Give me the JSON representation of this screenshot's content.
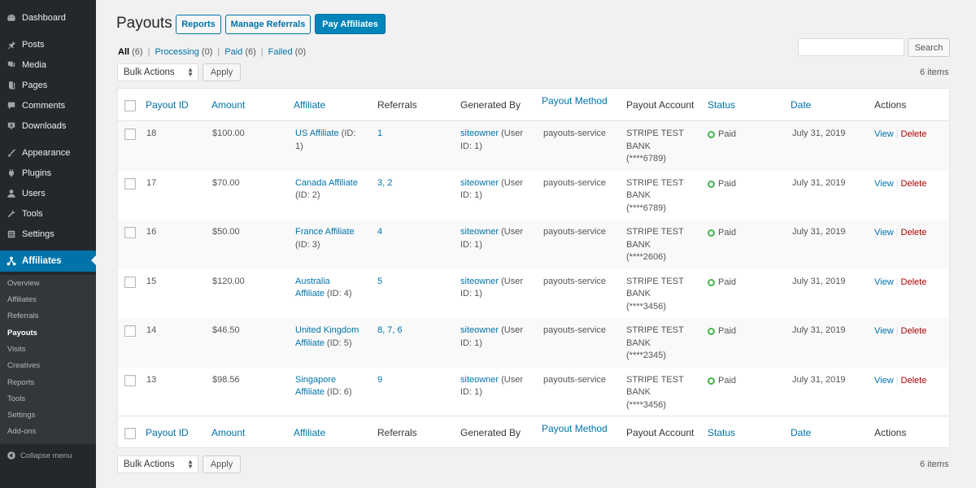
{
  "sidebar": {
    "items": [
      {
        "label": "Dashboard",
        "icon": "dashboard-icon"
      },
      {
        "label": "Posts",
        "icon": "pin-icon"
      },
      {
        "label": "Media",
        "icon": "media-icon"
      },
      {
        "label": "Pages",
        "icon": "pages-icon"
      },
      {
        "label": "Comments",
        "icon": "comment-icon"
      },
      {
        "label": "Downloads",
        "icon": "download-icon"
      },
      {
        "label": "Appearance",
        "icon": "brush-icon"
      },
      {
        "label": "Plugins",
        "icon": "plugin-icon"
      },
      {
        "label": "Users",
        "icon": "user-icon"
      },
      {
        "label": "Tools",
        "icon": "wrench-icon"
      },
      {
        "label": "Settings",
        "icon": "settings-icon"
      },
      {
        "label": "Affiliates",
        "icon": "affiliates-icon"
      }
    ],
    "submenu": [
      "Overview",
      "Affiliates",
      "Referrals",
      "Payouts",
      "Visits",
      "Creatives",
      "Reports",
      "Tools",
      "Settings",
      "Add-ons"
    ],
    "current_sub": "Payouts",
    "collapse_label": "Collapse menu"
  },
  "page": {
    "title": "Payouts",
    "reports_label": "Reports",
    "manage_referrals_label": "Manage Referrals",
    "pay_affiliates_label": "Pay Affiliates"
  },
  "filters": {
    "all": "All",
    "all_count": "(6)",
    "processing": "Processing",
    "processing_count": "(0)",
    "paid": "Paid",
    "paid_count": "(6)",
    "failed": "Failed",
    "failed_count": "(0)",
    "separator": "|"
  },
  "search": {
    "button_label": "Search",
    "value": ""
  },
  "bulk": {
    "top_label": "Bulk Actions",
    "bottom_label": "Bulk Actions",
    "apply_label": "Apply"
  },
  "items_count": "6 items",
  "table": {
    "columns": [
      "Payout ID",
      "Amount",
      "Affiliate",
      "Referrals",
      "Generated By",
      "Payout Method",
      "Payout Account",
      "Status",
      "Date",
      "Actions"
    ],
    "rows": [
      {
        "id": "18",
        "amount": "$100.00",
        "aff_line1_link": "US Affiliate",
        "aff_line1_rest": " (ID:",
        "aff_line2_link": "",
        "aff_line2_rest": "1)",
        "referrals": "1",
        "gen_link": "siteowner",
        "gen_rest1": " (User",
        "gen_rest2": "ID: 1)",
        "method": "payouts-service",
        "acct1": "STRIPE TEST",
        "acct2": "BANK",
        "acct3": "(****6789)",
        "status": "Paid",
        "date": "July 31, 2019",
        "view": "View",
        "delete": "Delete"
      },
      {
        "id": "17",
        "amount": "$70.00",
        "aff_line1_link": "Canada Affiliate",
        "aff_line1_rest": "",
        "aff_line2_link": "",
        "aff_line2_rest": "(ID: 2)",
        "referrals": "3, 2",
        "gen_link": "siteowner",
        "gen_rest1": " (User",
        "gen_rest2": "ID: 1)",
        "method": "payouts-service",
        "acct1": "STRIPE TEST",
        "acct2": "BANK",
        "acct3": "(****6789)",
        "status": "Paid",
        "date": "July 31, 2019",
        "view": "View",
        "delete": "Delete"
      },
      {
        "id": "16",
        "amount": "$50.00",
        "aff_line1_link": "France Affiliate",
        "aff_line1_rest": "",
        "aff_line2_link": "",
        "aff_line2_rest": "(ID: 3)",
        "referrals": "4",
        "gen_link": "siteowner",
        "gen_rest1": " (User",
        "gen_rest2": "ID: 1)",
        "method": "payouts-service",
        "acct1": "STRIPE TEST",
        "acct2": "BANK",
        "acct3": "(****2606)",
        "status": "Paid",
        "date": "July 31, 2019",
        "view": "View",
        "delete": "Delete"
      },
      {
        "id": "15",
        "amount": "$120.00",
        "aff_line1_link": "Australia",
        "aff_line1_rest": "",
        "aff_line2_link": "Affiliate",
        "aff_line2_rest": " (ID: 4)",
        "referrals": "5",
        "gen_link": "siteowner",
        "gen_rest1": " (User",
        "gen_rest2": "ID: 1)",
        "method": "payouts-service",
        "acct1": "STRIPE TEST",
        "acct2": "BANK",
        "acct3": "(****3456)",
        "status": "Paid",
        "date": "July 31, 2019",
        "view": "View",
        "delete": "Delete"
      },
      {
        "id": "14",
        "amount": "$46.50",
        "aff_line1_link": "United Kingdom",
        "aff_line1_rest": "",
        "aff_line2_link": "Affiliate",
        "aff_line2_rest": " (ID: 5)",
        "referrals": "8, 7, 6",
        "gen_link": "siteowner",
        "gen_rest1": " (User",
        "gen_rest2": "ID: 1)",
        "method": "payouts-service",
        "acct1": "STRIPE TEST",
        "acct2": "BANK",
        "acct3": "(****2345)",
        "status": "Paid",
        "date": "July 31, 2019",
        "view": "View",
        "delete": "Delete"
      },
      {
        "id": "13",
        "amount": "$98.56",
        "aff_line1_link": "Singapore",
        "aff_line1_rest": "",
        "aff_line2_link": "Affiliate",
        "aff_line2_rest": " (ID: 6)",
        "referrals": "9",
        "gen_link": "siteowner",
        "gen_rest1": " (User",
        "gen_rest2": "ID: 1)",
        "method": "payouts-service",
        "acct1": "STRIPE TEST",
        "acct2": "BANK",
        "acct3": "(****3456)",
        "status": "Paid",
        "date": "July 31, 2019",
        "view": "View",
        "delete": "Delete"
      }
    ]
  },
  "colors": {
    "sidebar_bg": "#23282d",
    "accent": "#0073aa",
    "primary_button": "#0085ba",
    "paid_green": "#46b450",
    "delete_red": "#a00"
  }
}
